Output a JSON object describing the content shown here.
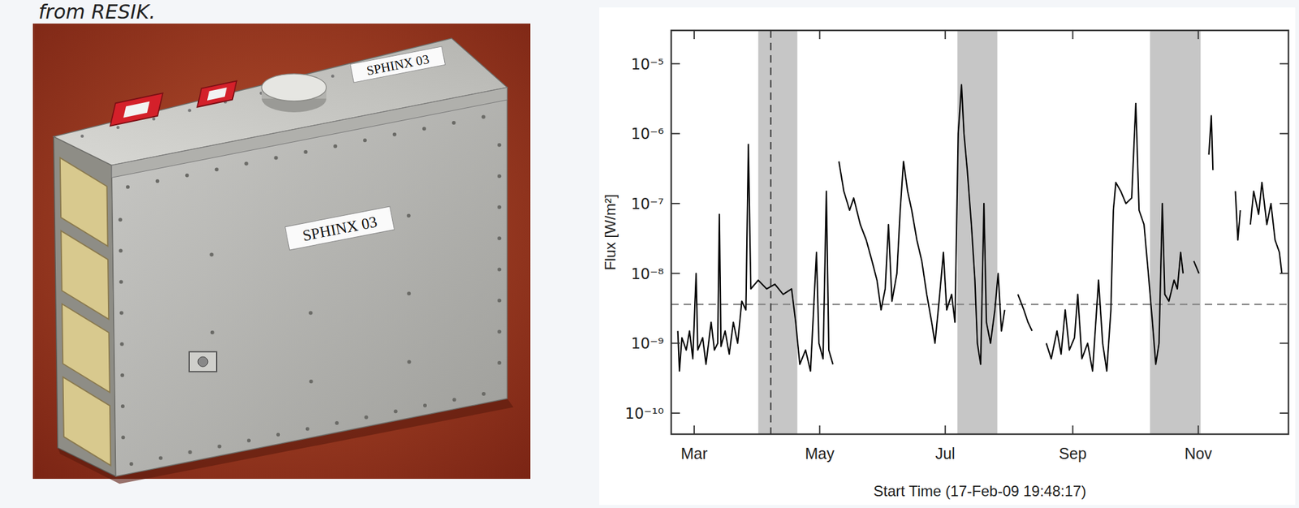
{
  "header": {
    "text": "from RESIK."
  },
  "photo": {
    "labels": [
      "SPHINX 03",
      "SPHINX 03"
    ]
  },
  "chart_data": {
    "type": "line",
    "x_label": "Start Time (17-Feb-09 19:48:17)",
    "y_label": "Flux [W/m²]",
    "log": "y",
    "grid": false,
    "xlim": [
      0,
      300
    ],
    "xticks": [
      {
        "value": 11.175,
        "label": "Mar"
      },
      {
        "value": 72.175,
        "label": "May"
      },
      {
        "value": 133.175,
        "label": "Jul"
      },
      {
        "value": 195.175,
        "label": "Sep"
      },
      {
        "value": 256.175,
        "label": "Nov"
      }
    ],
    "ylim": [
      5e-11,
      3e-05
    ],
    "yticks": [
      {
        "value": 1e-10,
        "label": "10⁻¹⁰"
      },
      {
        "value": 1e-09,
        "label": "10⁻⁹"
      },
      {
        "value": 1e-08,
        "label": "10⁻⁸"
      },
      {
        "value": 1e-07,
        "label": "10⁻⁷"
      },
      {
        "value": 1e-06,
        "label": "10⁻⁶"
      },
      {
        "value": 1e-05,
        "label": "10⁻⁵"
      }
    ],
    "shaded_ranges": [
      [
        42.3,
        61.3
      ],
      [
        139.1,
        158.5
      ],
      [
        232.7,
        257.3
      ]
    ],
    "vline": 48.4,
    "hline": 3.6e-09,
    "series": [
      {
        "color": "#000000",
        "line_style": "solid",
        "x": [
          3.2,
          4,
          5.2,
          7.3,
          8.9,
          10.5,
          12.1,
          12.9,
          15.3,
          16.9,
          19.4,
          21,
          22.6,
          23.4,
          24.2,
          26.2,
          28.2,
          30.2,
          32.3,
          34.3,
          36.3,
          37.5,
          38.7,
          42.3,
          46.4,
          50.4,
          54.4,
          58.5,
          60.5,
          62.5,
          65.3,
          67.7,
          70.6,
          71.8,
          73.8,
          75.4,
          76.6,
          78.6,
          null,
          81.5,
          83.9,
          86.7,
          88.7,
          91.9,
          94.8,
          97.6,
          100,
          102,
          104,
          105.6,
          107.3,
          109.7,
          111.3,
          112.9,
          114.9,
          116.9,
          119.4,
          121.8,
          124.2,
          126.6,
          128.2,
          130.2,
          132.3,
          133.9,
          136.3,
          137.9,
          139.5,
          141.1,
          142.3,
          143.9,
          145.9,
          147.6,
          148.8,
          150.4,
          152,
          153.2,
          155.2,
          157.3,
          158.9,
          160.5,
          162.1,
          null,
          168.5,
          171.4,
          173.4,
          175.4,
          null,
          182.3,
          184.7,
          187.5,
          189.5,
          191.5,
          193.5,
          196,
          197.6,
          199.6,
          202.4,
          204.8,
          207.7,
          209.7,
          211.7,
          213.7,
          214.9,
          216.1,
          218.5,
          221,
          223.8,
          225.8,
          227.4,
          229.8,
          231.9,
          233.9,
          235.5,
          237.1,
          238.7,
          239.9,
          241.9,
          244.4,
          246,
          247.6,
          248.8,
          null,
          254,
          256.5,
          null,
          261.3,
          262.5,
          263.3,
          null,
          274.2,
          275.4,
          276.6,
          null,
          281.5,
          283.1,
          285.5,
          287.1,
          289.5,
          291.5,
          293.5,
          295.6,
          296.8
        ],
        "values": [
          1.5e-09,
          4e-10,
          1.2e-09,
          8e-10,
          1.5e-09,
          6e-10,
          1e-08,
          8e-10,
          1.2e-09,
          5e-10,
          2e-09,
          8e-10,
          1e-09,
          7e-08,
          9e-10,
          1.5e-09,
          7e-10,
          2e-09,
          1e-09,
          4e-09,
          3e-09,
          7e-07,
          6e-09,
          8e-09,
          6e-09,
          7e-09,
          5e-09,
          6e-09,
          2e-09,
          5e-10,
          8e-10,
          4e-10,
          2e-08,
          1e-09,
          6e-10,
          1.5e-07,
          8e-10,
          5e-10,
          null,
          4e-07,
          1.5e-07,
          8e-08,
          1.2e-07,
          5e-08,
          3e-08,
          1.5e-08,
          8e-09,
          3e-09,
          6e-09,
          5e-08,
          4e-09,
          1e-08,
          8e-08,
          4e-07,
          1.5e-07,
          8e-08,
          3e-08,
          1.5e-08,
          5e-09,
          2e-09,
          1e-09,
          4e-09,
          2e-08,
          3e-09,
          5e-09,
          2e-09,
          1e-06,
          5e-06,
          1e-06,
          3e-07,
          5e-08,
          8e-09,
          1e-09,
          5e-10,
          1e-07,
          2e-09,
          1e-09,
          3e-09,
          1e-08,
          1.5e-09,
          3e-09,
          null,
          5e-09,
          3e-09,
          2e-09,
          1.5e-09,
          null,
          1e-09,
          6e-10,
          1.5e-09,
          7e-10,
          3e-09,
          8e-10,
          1.2e-09,
          5e-09,
          6e-10,
          1e-09,
          4e-10,
          8e-09,
          1e-09,
          4e-10,
          3e-09,
          8e-08,
          2e-07,
          1.5e-07,
          1e-07,
          1.2e-07,
          2.7e-06,
          8e-08,
          5e-08,
          1e-08,
          2e-09,
          5e-10,
          1e-09,
          1e-07,
          5e-09,
          4e-09,
          8e-09,
          6e-09,
          2e-08,
          1e-08,
          null,
          1.5e-08,
          1e-08,
          null,
          5e-07,
          1.8e-06,
          3e-07,
          null,
          1.5e-07,
          3e-08,
          8e-08,
          null,
          5e-08,
          1.5e-07,
          7e-08,
          2e-07,
          5e-08,
          1e-07,
          3e-08,
          2e-08,
          1e-08
        ]
      }
    ]
  }
}
